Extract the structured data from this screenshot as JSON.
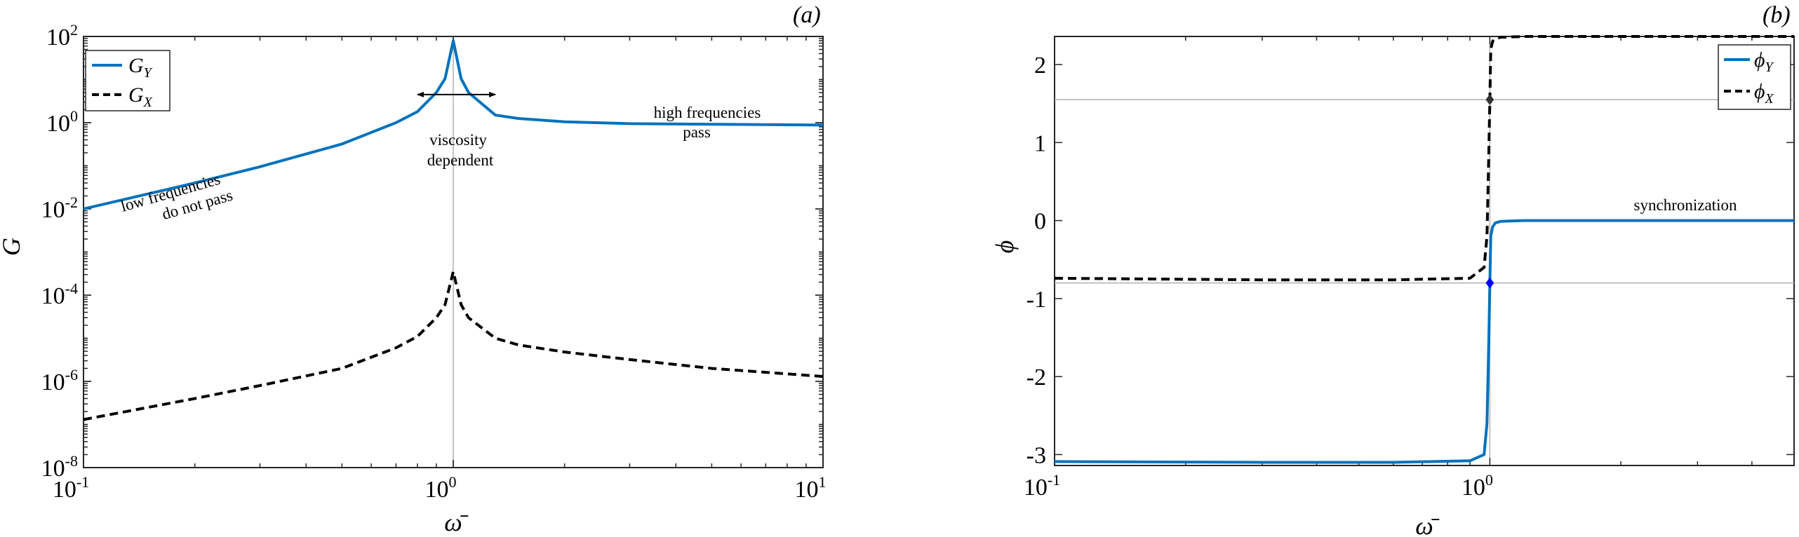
{
  "chart_data": [
    {
      "type": "line",
      "panel_label": "(a)",
      "xscale": "log",
      "yscale": "log",
      "xlim": [
        0.1,
        10
      ],
      "ylim": [
        1e-08,
        100
      ],
      "xlabel": "ω̄",
      "ylabel": "G",
      "x_tick_labels": [
        {
          "base": "10",
          "exp": "-1"
        },
        {
          "base": "10",
          "exp": "0"
        },
        {
          "base": "10",
          "exp": "1"
        }
      ],
      "y_tick_labels": [
        {
          "base": "10",
          "exp": "2"
        },
        {
          "base": "10",
          "exp": "0"
        },
        {
          "base": "10",
          "exp": "-2"
        },
        {
          "base": "10",
          "exp": "-4"
        },
        {
          "base": "10",
          "exp": "-6"
        },
        {
          "base": "10",
          "exp": "-8"
        }
      ],
      "legend": {
        "position": "top-left",
        "entries": [
          {
            "base": "G",
            "sub": "Y",
            "style": "solid",
            "color": "#0072BD"
          },
          {
            "base": "G",
            "sub": "X",
            "style": "dashed",
            "color": "#000000"
          }
        ]
      },
      "reference_lines": [
        {
          "axis": "x",
          "value": 1,
          "color": "#b0b0b0"
        }
      ],
      "series": [
        {
          "name": "G_Y",
          "style": "solid",
          "color": "#0072BD",
          "x": [
            0.1,
            0.2,
            0.3,
            0.5,
            0.7,
            0.8,
            0.9,
            0.95,
            1.0,
            1.05,
            1.1,
            1.3,
            1.5,
            2,
            3,
            5,
            10
          ],
          "y": [
            0.01,
            0.04,
            0.095,
            0.32,
            1.0,
            1.8,
            5.0,
            10.5,
            80,
            10.5,
            5.0,
            1.5,
            1.25,
            1.05,
            0.95,
            0.92,
            0.88
          ]
        },
        {
          "name": "G_X",
          "style": "dashed",
          "color": "#000000",
          "x": [
            0.1,
            0.2,
            0.3,
            0.5,
            0.7,
            0.8,
            0.9,
            0.95,
            1.0,
            1.05,
            1.1,
            1.3,
            1.5,
            2,
            3,
            5,
            10
          ],
          "y": [
            1.3e-07,
            4e-07,
            8e-07,
            2e-06,
            6e-06,
            1.1e-05,
            3e-05,
            6e-05,
            0.00035,
            6e-05,
            3e-05,
            1e-05,
            7e-06,
            4.8e-06,
            3.2e-06,
            2e-06,
            1.3e-06
          ]
        }
      ],
      "annotations": [
        {
          "lines": [
            "low frequencies",
            "do not pass"
          ]
        },
        {
          "lines": [
            "viscosity",
            "dependent"
          ],
          "arrow": "double-headed, from ω̄≈0.8 to ω̄≈1.3 at G≈4.5"
        },
        {
          "lines": [
            "high frequencies",
            "pass"
          ]
        }
      ]
    },
    {
      "type": "line",
      "panel_label": "(b)",
      "xscale": "log",
      "yscale": "linear",
      "xlim": [
        0.1,
        5
      ],
      "ylim": [
        -3.14,
        2.36
      ],
      "xlabel": "ω̄",
      "ylabel": "ϕ",
      "x_tick_labels": [
        {
          "base": "10",
          "exp": "-1"
        },
        {
          "base": "10",
          "exp": "0"
        }
      ],
      "y_tick_values": [
        "2",
        "1",
        "0",
        "-1",
        "-2",
        "-3"
      ],
      "legend": {
        "position": "top-right",
        "entries": [
          {
            "base": "ϕ",
            "sub": "Y",
            "style": "solid",
            "color": "#0072BD"
          },
          {
            "base": "ϕ",
            "sub": "X",
            "style": "dashed",
            "color": "#000000"
          }
        ]
      },
      "reference_lines": [
        {
          "axis": "x",
          "value": 1,
          "color": "#b0b0b0"
        },
        {
          "axis": "y",
          "value": 1.55,
          "color": "#b0b0b0"
        },
        {
          "axis": "y",
          "value": -0.8,
          "color": "#b0b0b0"
        }
      ],
      "series": [
        {
          "name": "phi_Y",
          "style": "solid",
          "color": "#0072BD",
          "x": [
            0.1,
            0.3,
            0.6,
            0.9,
            0.97,
            0.985,
            0.995,
            1.0,
            1.005,
            1.015,
            1.03,
            1.06,
            1.2,
            5
          ],
          "y": [
            -3.09,
            -3.1,
            -3.1,
            -3.08,
            -3.0,
            -2.6,
            -1.5,
            -0.8,
            -0.2,
            -0.08,
            -0.03,
            -0.01,
            0,
            0
          ]
        },
        {
          "name": "phi_X",
          "style": "dashed",
          "color": "#000000",
          "x": [
            0.1,
            0.3,
            0.6,
            0.9,
            0.97,
            0.985,
            0.995,
            1.0,
            1.005,
            1.015,
            1.03,
            1.06,
            1.2,
            5
          ],
          "y": [
            -0.74,
            -0.76,
            -0.76,
            -0.74,
            -0.6,
            -0.2,
            0.9,
            1.55,
            2.2,
            2.3,
            2.33,
            2.35,
            2.36,
            2.36
          ]
        }
      ],
      "markers": [
        {
          "x": 1.0,
          "y": 1.55,
          "color": "#333333",
          "shape": "diamond"
        },
        {
          "x": 1.0,
          "y": -0.8,
          "color": "#0000ff",
          "shape": "diamond"
        }
      ],
      "annotations": [
        {
          "lines": [
            "synchronization"
          ]
        }
      ]
    }
  ]
}
